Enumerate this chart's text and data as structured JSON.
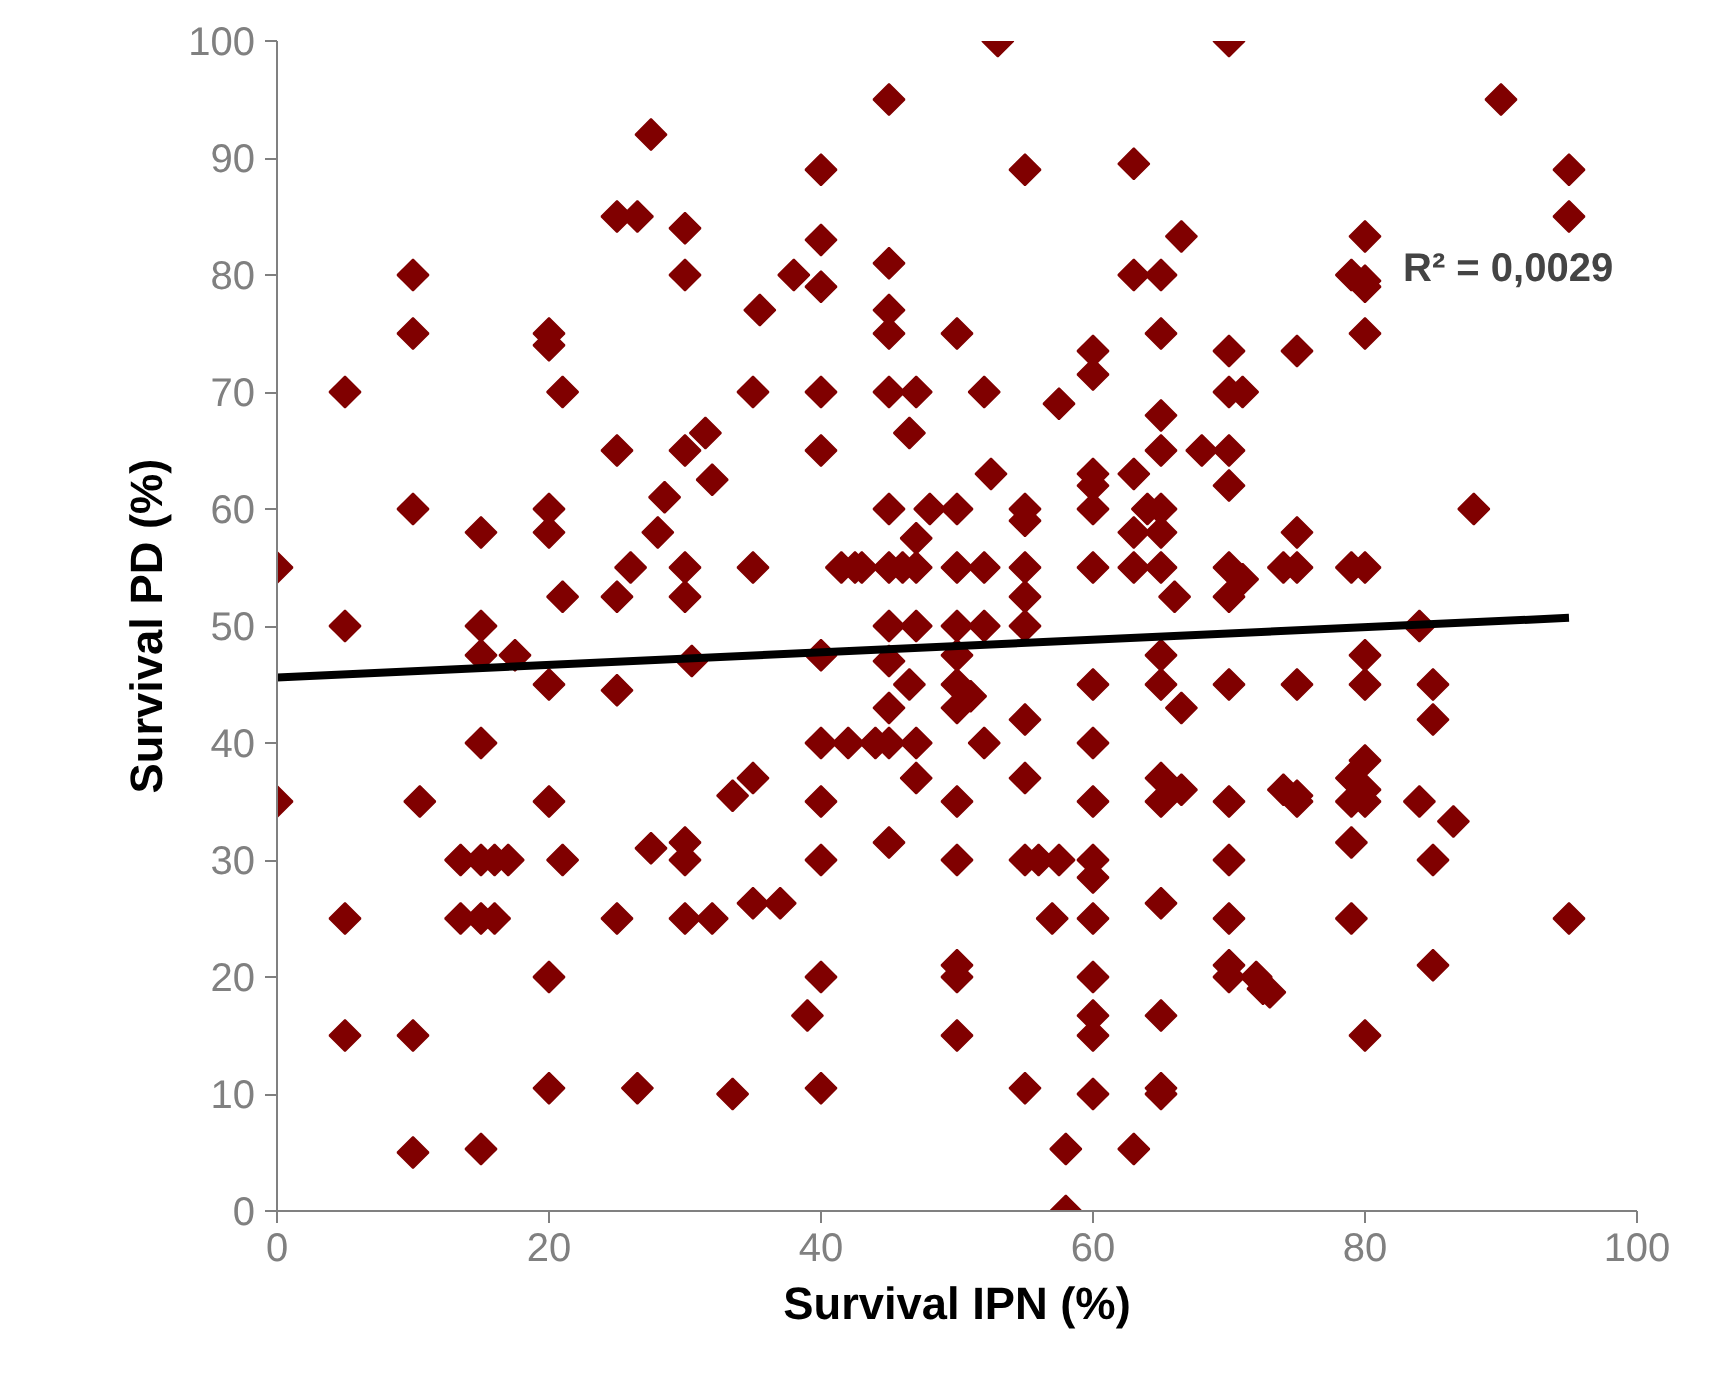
{
  "chart_data": {
    "type": "scatter",
    "xlabel": "Survival IPN (%)",
    "ylabel": "Survival PD (%)",
    "annotations": [
      "R² = 0,0029"
    ],
    "xlim": [
      0,
      100
    ],
    "xticks": [
      0,
      20,
      40,
      60,
      80,
      100
    ],
    "ylim": [
      0,
      100
    ],
    "yticks": [
      0,
      10,
      20,
      30,
      40,
      50,
      60,
      70,
      80,
      90,
      100
    ],
    "grid": false,
    "series": [
      {
        "marker": "diamond",
        "color": "#800000",
        "x": [
          0,
          0,
          5,
          5,
          5,
          5,
          10,
          10,
          10,
          10,
          10,
          10.5,
          13.5,
          13.5,
          15,
          15,
          15,
          15,
          15,
          15,
          16,
          16,
          17,
          15,
          17.5,
          20,
          20,
          20,
          20,
          20,
          20,
          20,
          20,
          21,
          21,
          21,
          25,
          25,
          25,
          25,
          25,
          26,
          26.5,
          26.5,
          27.5,
          27.5,
          28,
          28.5,
          30,
          30,
          30,
          30,
          30,
          30,
          30,
          30,
          30.5,
          31.5,
          32,
          32,
          33.5,
          33.5,
          35,
          35,
          35,
          35,
          35.5,
          37,
          38,
          39,
          40,
          40,
          40,
          40,
          40,
          40,
          40,
          40,
          40,
          40,
          40,
          41.5,
          42,
          42.5,
          43,
          44,
          45,
          45,
          45,
          45,
          45,
          45,
          45,
          45,
          45,
          45,
          45,
          45,
          46,
          46.5,
          46.5,
          47,
          47,
          47,
          47,
          47,
          47,
          48,
          50,
          50,
          50,
          50,
          50,
          50,
          50,
          50,
          50,
          50,
          50,
          50,
          51,
          52,
          52,
          52,
          52,
          52.5,
          53,
          55,
          55,
          55,
          55,
          55,
          55,
          55,
          55,
          55,
          55,
          56,
          57,
          57.5,
          57.5,
          58,
          58,
          60,
          60,
          60,
          60,
          60,
          60,
          60,
          60,
          60,
          60,
          60,
          60,
          60,
          60,
          60,
          60,
          63,
          63,
          63,
          63,
          63,
          63,
          64,
          65,
          65,
          65,
          65,
          65,
          65,
          65,
          65,
          65,
          65,
          65,
          65,
          65,
          65,
          65,
          66,
          66.5,
          66.5,
          66.5,
          68,
          70,
          70,
          70,
          70,
          70,
          70,
          70,
          70,
          70,
          70,
          70,
          70,
          70,
          71,
          71,
          72,
          72.5,
          73,
          74,
          74,
          75,
          75,
          75,
          75,
          75,
          75,
          79,
          79,
          79,
          79,
          79,
          79,
          80,
          80,
          80,
          80,
          80,
          80,
          80,
          80,
          80,
          80,
          80,
          84,
          84,
          85,
          85,
          85,
          85,
          86.5,
          88,
          90,
          95,
          95,
          95
        ],
        "values": [
          55,
          35,
          70,
          50,
          25,
          15,
          80,
          75,
          60,
          15,
          5,
          35,
          30,
          25,
          58,
          50,
          47.5,
          40,
          30,
          25,
          30,
          25,
          30,
          5.3,
          47.5,
          75,
          74,
          60,
          58,
          45,
          35,
          20,
          10.5,
          70,
          52.5,
          30,
          85,
          65,
          52.5,
          44.5,
          25,
          55,
          85,
          10.5,
          92,
          31,
          58,
          61,
          84,
          80,
          65,
          55,
          52.5,
          31.5,
          30,
          25,
          47,
          66.5,
          62.5,
          25,
          35.5,
          10,
          70,
          55,
          37,
          26.3,
          77,
          26.3,
          80,
          16.7,
          89,
          83,
          79,
          70,
          65,
          47.5,
          40,
          35,
          30,
          20,
          10.5,
          55,
          40,
          55,
          55,
          40,
          95,
          81,
          77,
          75,
          70,
          60,
          55,
          50,
          47,
          43,
          40,
          31.5,
          55,
          66.5,
          45,
          70,
          57.5,
          55,
          50,
          40,
          37,
          60,
          75,
          60,
          55,
          50,
          47.5,
          45,
          43,
          35,
          30,
          21,
          20,
          15,
          44,
          70,
          55,
          50,
          40,
          63,
          100,
          89,
          60,
          59,
          55,
          52.5,
          50,
          42,
          37,
          30,
          10.5,
          30,
          25,
          69,
          30,
          5.3,
          0,
          73.5,
          71.5,
          63,
          62,
          60,
          55,
          45,
          40,
          35,
          30,
          28.5,
          25,
          20,
          16.7,
          15,
          10,
          89.5,
          80,
          63,
          58,
          55,
          5.3,
          60,
          80,
          75,
          68,
          65,
          60,
          58,
          55,
          47.5,
          45,
          37,
          35,
          26.3,
          16.7,
          10.5,
          10,
          52.5,
          83.3,
          43,
          36,
          65,
          100,
          73.5,
          70,
          65,
          62,
          55,
          52.5,
          45,
          35,
          30,
          25,
          21,
          20,
          70,
          54,
          20,
          19,
          18.7,
          55,
          36,
          73.5,
          58,
          55,
          45,
          35.5,
          35,
          80,
          55,
          37,
          35,
          31.5,
          25,
          83.3,
          79.5,
          79,
          75,
          55,
          47.5,
          45,
          38.5,
          36,
          35,
          15,
          50,
          35,
          45,
          42,
          30,
          21,
          33.3,
          60,
          95,
          89,
          85,
          25
        ]
      },
      {
        "type": "line",
        "color": "#000000",
        "x": [
          0,
          95
        ],
        "values": [
          45.6,
          50.7
        ]
      }
    ]
  }
}
